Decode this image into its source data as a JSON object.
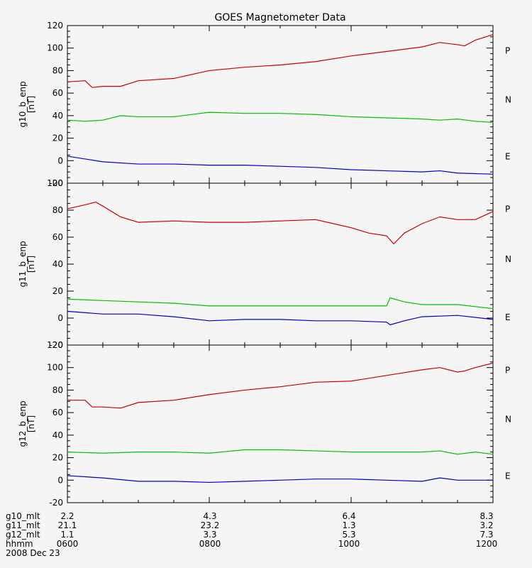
{
  "title": "GOES Magnetometer Data",
  "colors": {
    "P": "#cc0000",
    "N": "#00c000",
    "E": "#0000c8"
  },
  "component_labels": [
    "P",
    "N",
    "E"
  ],
  "footer": {
    "rows": [
      {
        "label": "g10_mlt",
        "values": [
          "2.2",
          "4.3",
          "6.4",
          "8.3"
        ]
      },
      {
        "label": "g11_mlt",
        "values": [
          "21.1",
          "23.2",
          "1.3",
          "3.2"
        ]
      },
      {
        "label": "g12_mlt",
        "values": [
          "1.1",
          "3.3",
          "5.3",
          "7.3"
        ]
      },
      {
        "label": "hhmm",
        "values": [
          "0600",
          "0800",
          "1000",
          "1200"
        ]
      }
    ],
    "date": "2008 Dec 23"
  },
  "chart_data": [
    {
      "type": "line",
      "ylabel": "g10_b_enp",
      "yunit": "[nT]",
      "x_hours": [
        6,
        6.5,
        7,
        7.5,
        8,
        8.5,
        9,
        9.5,
        10,
        10.5,
        11,
        11.5,
        12
      ],
      "ylim": [
        -20,
        120
      ],
      "yticks": [
        -20,
        0,
        20,
        40,
        60,
        80,
        100,
        120
      ],
      "series": [
        {
          "name": "P",
          "points": [
            [
              6.0,
              70
            ],
            [
              6.25,
              71
            ],
            [
              6.35,
              65
            ],
            [
              6.5,
              66
            ],
            [
              6.75,
              66
            ],
            [
              7.0,
              71
            ],
            [
              7.5,
              73
            ],
            [
              8.0,
              80
            ],
            [
              8.5,
              83
            ],
            [
              9.0,
              85
            ],
            [
              9.5,
              88
            ],
            [
              10.0,
              93
            ],
            [
              10.5,
              97
            ],
            [
              11.0,
              101
            ],
            [
              11.25,
              105
            ],
            [
              11.5,
              103
            ],
            [
              11.6,
              102
            ],
            [
              11.75,
              107
            ],
            [
              12.0,
              112
            ]
          ]
        },
        {
          "name": "N",
          "points": [
            [
              6.0,
              36
            ],
            [
              6.25,
              35
            ],
            [
              6.5,
              36
            ],
            [
              6.75,
              40
            ],
            [
              7.0,
              39
            ],
            [
              7.5,
              39
            ],
            [
              8.0,
              43
            ],
            [
              8.5,
              42
            ],
            [
              9.0,
              42
            ],
            [
              9.5,
              41
            ],
            [
              10.0,
              39
            ],
            [
              10.5,
              38
            ],
            [
              11.0,
              37
            ],
            [
              11.25,
              36
            ],
            [
              11.5,
              37
            ],
            [
              11.75,
              35
            ],
            [
              12.0,
              34
            ]
          ]
        },
        {
          "name": "E",
          "points": [
            [
              6.0,
              4
            ],
            [
              6.5,
              -1
            ],
            [
              7.0,
              -3
            ],
            [
              7.5,
              -3
            ],
            [
              8.0,
              -4
            ],
            [
              8.5,
              -4
            ],
            [
              9.0,
              -5
            ],
            [
              9.5,
              -6
            ],
            [
              10.0,
              -8
            ],
            [
              10.5,
              -9
            ],
            [
              11.0,
              -10
            ],
            [
              11.25,
              -9
            ],
            [
              11.5,
              -11
            ],
            [
              12.0,
              -12
            ]
          ]
        }
      ]
    },
    {
      "type": "line",
      "ylabel": "g11_b_enp",
      "yunit": "[nT]",
      "x_hours": [
        6,
        6.5,
        7,
        7.5,
        8,
        8.5,
        9,
        9.5,
        10,
        10.5,
        11,
        11.5,
        12
      ],
      "ylim": [
        -20,
        100
      ],
      "yticks": [
        -20,
        0,
        20,
        40,
        60,
        80,
        100
      ],
      "series": [
        {
          "name": "P",
          "points": [
            [
              6.0,
              81
            ],
            [
              6.25,
              84
            ],
            [
              6.4,
              86
            ],
            [
              6.5,
              83
            ],
            [
              6.75,
              75
            ],
            [
              7.0,
              71
            ],
            [
              7.5,
              72
            ],
            [
              8.0,
              71
            ],
            [
              8.5,
              71
            ],
            [
              9.0,
              72
            ],
            [
              9.5,
              73
            ],
            [
              9.75,
              70
            ],
            [
              10.0,
              67
            ],
            [
              10.25,
              63
            ],
            [
              10.5,
              61
            ],
            [
              10.6,
              55
            ],
            [
              10.75,
              63
            ],
            [
              11.0,
              70
            ],
            [
              11.25,
              75
            ],
            [
              11.5,
              73
            ],
            [
              11.75,
              73
            ],
            [
              12.0,
              79
            ]
          ]
        },
        {
          "name": "N",
          "points": [
            [
              6.0,
              14
            ],
            [
              6.5,
              13
            ],
            [
              7.0,
              12
            ],
            [
              7.5,
              11
            ],
            [
              8.0,
              9
            ],
            [
              8.5,
              9
            ],
            [
              9.0,
              9
            ],
            [
              9.5,
              9
            ],
            [
              10.0,
              9
            ],
            [
              10.5,
              9
            ],
            [
              10.55,
              15
            ],
            [
              10.75,
              12
            ],
            [
              11.0,
              10
            ],
            [
              11.5,
              10
            ],
            [
              12.0,
              7
            ]
          ]
        },
        {
          "name": "E",
          "points": [
            [
              6.0,
              5
            ],
            [
              6.5,
              3
            ],
            [
              7.0,
              3
            ],
            [
              7.5,
              1
            ],
            [
              8.0,
              -2
            ],
            [
              8.5,
              -1
            ],
            [
              9.0,
              -1
            ],
            [
              9.5,
              -2
            ],
            [
              10.0,
              -2
            ],
            [
              10.5,
              -3
            ],
            [
              10.55,
              -5
            ],
            [
              10.75,
              -2
            ],
            [
              11.0,
              1
            ],
            [
              11.5,
              2
            ],
            [
              12.0,
              -1
            ]
          ]
        }
      ]
    },
    {
      "type": "line",
      "ylabel": "g12_b_enp",
      "yunit": "[nT]",
      "x_hours": [
        6,
        6.5,
        7,
        7.5,
        8,
        8.5,
        9,
        9.5,
        10,
        10.5,
        11,
        11.5,
        12
      ],
      "ylim": [
        -20,
        120
      ],
      "yticks": [
        -20,
        0,
        20,
        40,
        60,
        80,
        100,
        120
      ],
      "series": [
        {
          "name": "P",
          "points": [
            [
              6.0,
              71
            ],
            [
              6.25,
              71
            ],
            [
              6.35,
              65
            ],
            [
              6.5,
              65
            ],
            [
              6.75,
              64
            ],
            [
              7.0,
              69
            ],
            [
              7.5,
              71
            ],
            [
              8.0,
              76
            ],
            [
              8.5,
              80
            ],
            [
              9.0,
              83
            ],
            [
              9.5,
              87
            ],
            [
              10.0,
              88
            ],
            [
              10.5,
              93
            ],
            [
              11.0,
              98
            ],
            [
              11.25,
              100
            ],
            [
              11.5,
              96
            ],
            [
              11.6,
              97
            ],
            [
              11.75,
              100
            ],
            [
              12.0,
              104
            ]
          ]
        },
        {
          "name": "N",
          "points": [
            [
              6.0,
              25
            ],
            [
              6.5,
              24
            ],
            [
              7.0,
              25
            ],
            [
              7.5,
              25
            ],
            [
              8.0,
              24
            ],
            [
              8.5,
              27
            ],
            [
              9.0,
              27
            ],
            [
              9.5,
              26
            ],
            [
              10.0,
              25
            ],
            [
              10.5,
              25
            ],
            [
              11.0,
              25
            ],
            [
              11.25,
              26
            ],
            [
              11.5,
              23
            ],
            [
              11.75,
              25
            ],
            [
              12.0,
              23
            ]
          ]
        },
        {
          "name": "E",
          "points": [
            [
              6.0,
              4
            ],
            [
              6.5,
              2
            ],
            [
              7.0,
              -1
            ],
            [
              7.5,
              -1
            ],
            [
              8.0,
              -2
            ],
            [
              8.5,
              -1
            ],
            [
              9.0,
              0
            ],
            [
              9.5,
              1
            ],
            [
              10.0,
              1
            ],
            [
              10.5,
              0
            ],
            [
              11.0,
              -1
            ],
            [
              11.25,
              2
            ],
            [
              11.5,
              0
            ],
            [
              12.0,
              0
            ]
          ]
        }
      ]
    }
  ]
}
